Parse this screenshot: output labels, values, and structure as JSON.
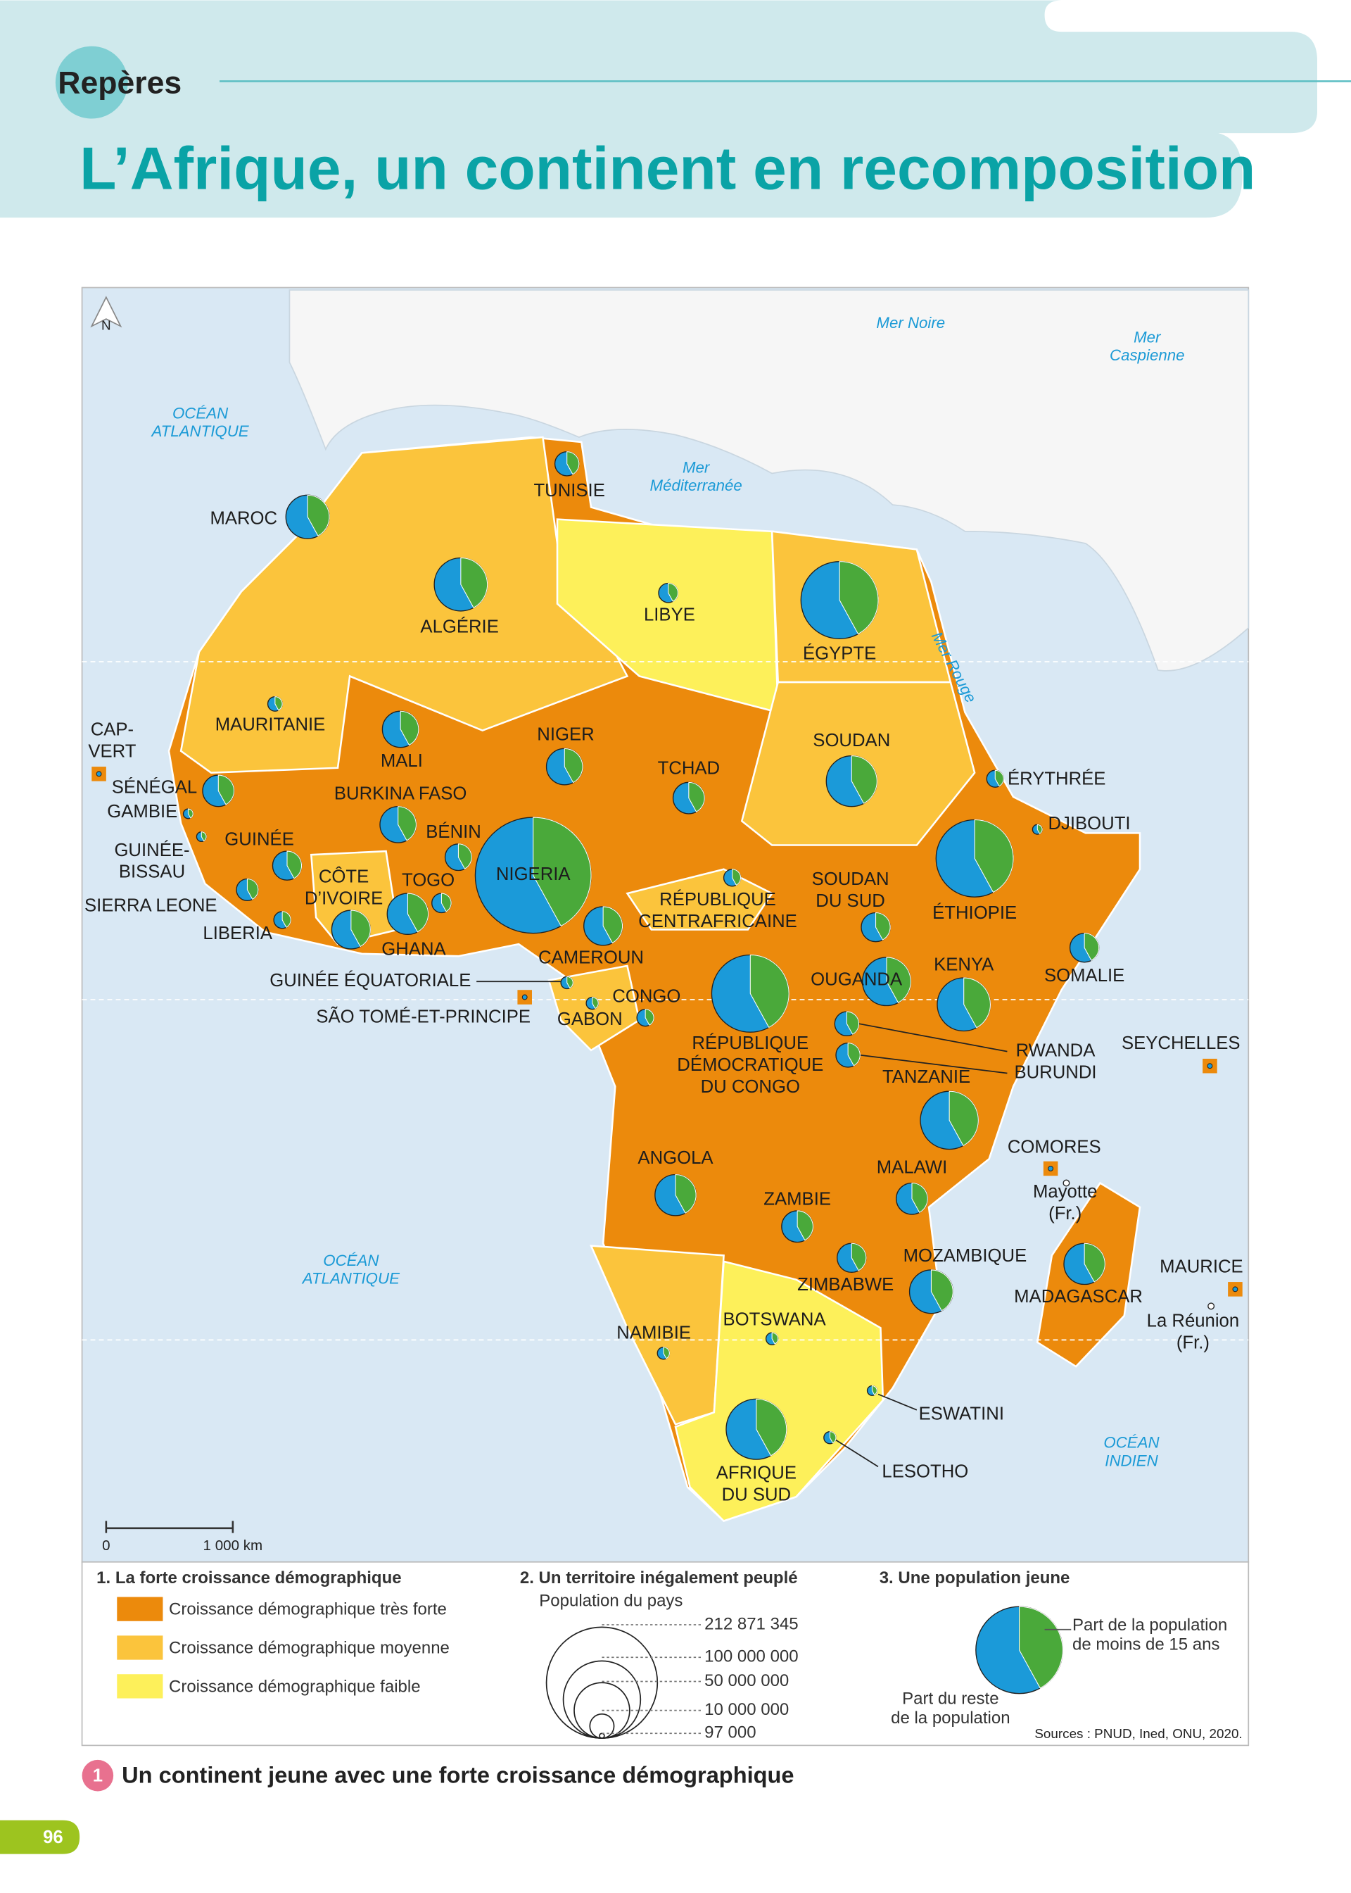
{
  "header": {
    "section": "Repères",
    "title": "L’Afrique, un continent en recomposition"
  },
  "map": {
    "north": "N",
    "seas": [
      {
        "label": [
          "OCÉAN",
          "ATLANTIQUE"
        ]
      },
      {
        "label": [
          "Mer Noire"
        ]
      },
      {
        "label": [
          "Mer",
          "Caspienne"
        ]
      },
      {
        "label": [
          "Mer",
          "Méditerranée"
        ]
      },
      {
        "label": [
          "Mer Rouge"
        ]
      },
      {
        "label": [
          "OCÉAN",
          "ATLANTIQUE"
        ]
      },
      {
        "label": [
          "OCÉAN",
          "INDIEN"
        ]
      }
    ],
    "countries": [
      {
        "label": [
          "MAROC"
        ]
      },
      {
        "label": [
          "TUNISIE"
        ]
      },
      {
        "label": [
          "ALGÉRIE"
        ]
      },
      {
        "label": [
          "LIBYE"
        ]
      },
      {
        "label": [
          "ÉGYPTE"
        ]
      },
      {
        "label": [
          "MAURITANIE"
        ]
      },
      {
        "label": [
          "MALI"
        ]
      },
      {
        "label": [
          "NIGER"
        ]
      },
      {
        "label": [
          "TCHAD"
        ]
      },
      {
        "label": [
          "SOUDAN"
        ]
      },
      {
        "label": [
          "ÉRYTHRÉE"
        ]
      },
      {
        "label": [
          "DJIBOUTI"
        ]
      },
      {
        "label": [
          "CAP-",
          "VERT"
        ]
      },
      {
        "label": [
          "SÉNÉGAL"
        ]
      },
      {
        "label": [
          "GAMBIE"
        ]
      },
      {
        "label": [
          "BURKINA FASO"
        ]
      },
      {
        "label": [
          "BÉNIN"
        ]
      },
      {
        "label": [
          "GUINÉE"
        ]
      },
      {
        "label": [
          "GUINÉE-",
          "BISSAU"
        ]
      },
      {
        "label": [
          "NIGERIA"
        ]
      },
      {
        "label": [
          "CÔTE",
          "D’IVOIRE"
        ]
      },
      {
        "label": [
          "TOGO"
        ]
      },
      {
        "label": [
          "SIERRA LEONE"
        ]
      },
      {
        "label": [
          "LIBERIA"
        ]
      },
      {
        "label": [
          "GHANA"
        ]
      },
      {
        "label": [
          "RÉPUBLIQUE",
          "CENTRAFRICAINE"
        ]
      },
      {
        "label": [
          "SOUDAN",
          "DU SUD"
        ]
      },
      {
        "label": [
          "ÉTHIOPIE"
        ]
      },
      {
        "label": [
          "CAMEROUN"
        ]
      },
      {
        "label": [
          "SOMALIE"
        ]
      },
      {
        "label": [
          "KENYA"
        ]
      },
      {
        "label": [
          "OUGANDA"
        ]
      },
      {
        "label": [
          "GUINÉE ÉQUATORIALE"
        ]
      },
      {
        "label": [
          "SÃO TOMÉ-ET-PRINCIPE"
        ]
      },
      {
        "label": [
          "CONGO"
        ]
      },
      {
        "label": [
          "GABON"
        ]
      },
      {
        "label": [
          "RÉPUBLIQUE",
          "DÉMOCRATIQUE",
          "DU CONGO"
        ]
      },
      {
        "label": [
          "RWANDA"
        ]
      },
      {
        "label": [
          "BURUNDI"
        ]
      },
      {
        "label": [
          "SEYCHELLES"
        ]
      },
      {
        "label": [
          "TANZANIE"
        ]
      },
      {
        "label": [
          "ANGOLA"
        ]
      },
      {
        "label": [
          "COMORES"
        ]
      },
      {
        "label": [
          "MALAWI"
        ]
      },
      {
        "label": [
          "Mayotte",
          "(Fr.)"
        ]
      },
      {
        "label": [
          "ZAMBIE"
        ]
      },
      {
        "label": [
          "MOZAMBIQUE"
        ]
      },
      {
        "label": [
          "MAURICE"
        ]
      },
      {
        "label": [
          "ZIMBABWE"
        ]
      },
      {
        "label": [
          "MADAGASCAR"
        ]
      },
      {
        "label": [
          "BOTSWANA"
        ]
      },
      {
        "label": [
          "NAMIBIE"
        ]
      },
      {
        "label": [
          "La Réunion",
          "(Fr.)"
        ]
      },
      {
        "label": [
          "ESWATINI"
        ]
      },
      {
        "label": [
          "AFRIQUE",
          "DU SUD"
        ]
      },
      {
        "label": [
          "LESOTHO"
        ]
      }
    ],
    "scale": {
      "zero": "0",
      "length": "1 000 km"
    }
  },
  "legend": {
    "growth": {
      "title": "1. La forte croissance démographique",
      "items": [
        "Croissance démographique très forte",
        "Croissance démographique moyenne",
        "Croissance démographique faible"
      ]
    },
    "population": {
      "title": "2. Un territoire inégalement peuplé",
      "subtitle": "Population du pays",
      "values": [
        "212 871 345",
        "100 000 000",
        "50 000 000",
        "10 000 000",
        "97 000"
      ]
    },
    "youth": {
      "title": "3. Une population jeune",
      "young": [
        "Part de la population",
        "de moins de 15 ans"
      ],
      "rest": [
        "Part du reste",
        "de la population"
      ]
    },
    "source": "Sources : PNUD, Ined, ONU, 2020."
  },
  "figure": {
    "number": "1",
    "caption": "Un continent jeune avec une forte croissance démographique"
  },
  "page_number": "96"
}
